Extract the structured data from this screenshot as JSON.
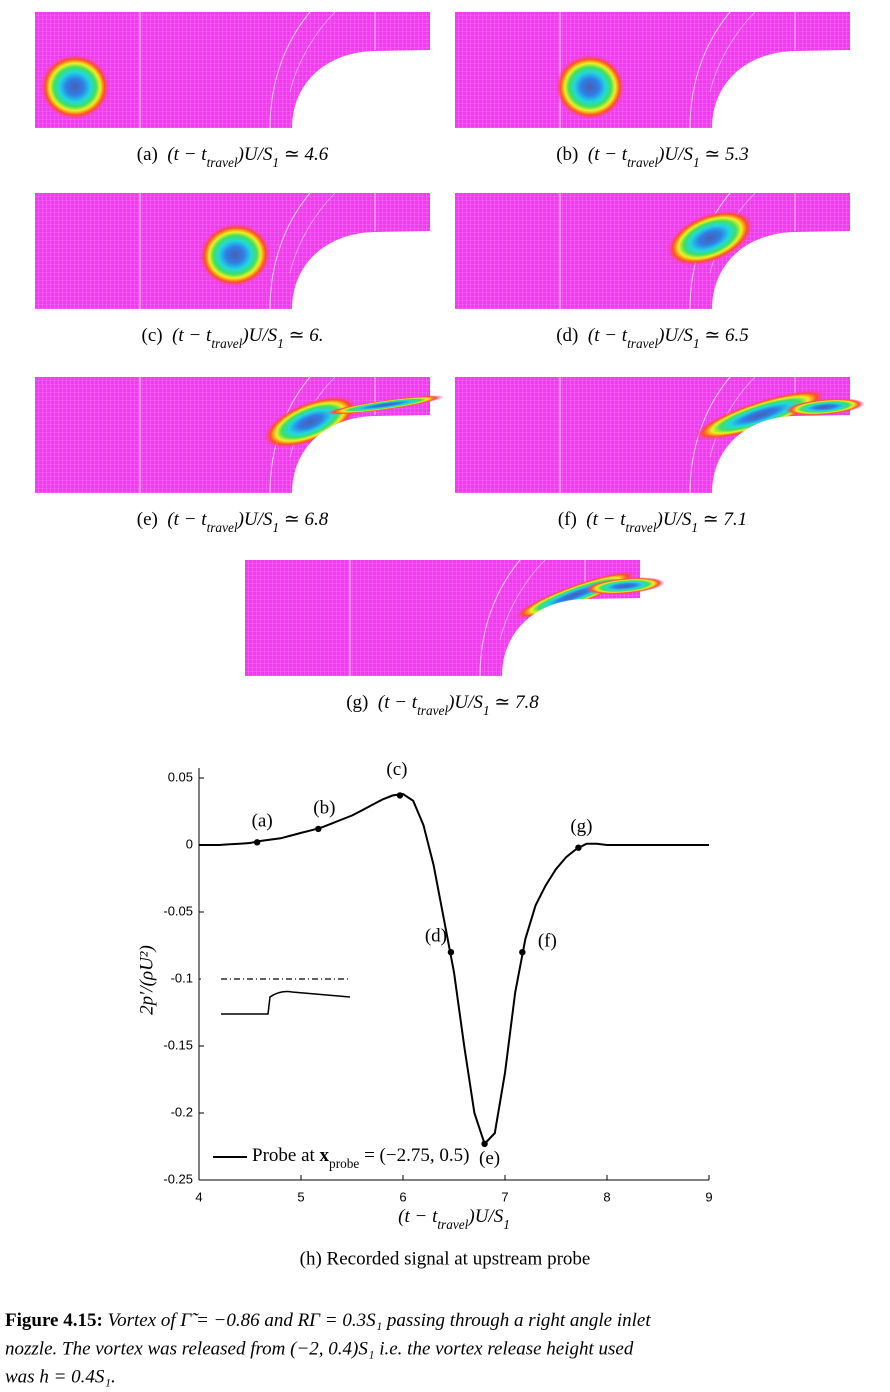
{
  "panels": [
    {
      "label": "(a)",
      "caption": [
        "(t − t",
        "travel",
        ")U/S",
        "1",
        " ≃ 4.6"
      ]
    },
    {
      "label": "(b)",
      "caption": [
        "(t − t",
        "travel",
        ")U/S",
        "1",
        " ≃ 5.3"
      ]
    },
    {
      "label": "(c)",
      "caption": [
        "(t − t",
        "travel",
        ")U/S",
        "1",
        " ≃ 6."
      ]
    },
    {
      "label": "(d)",
      "caption": [
        "(t − t",
        "travel",
        ")U/S",
        "1",
        " ≃ 6.5"
      ]
    },
    {
      "label": "(e)",
      "caption": [
        "(t − t",
        "travel",
        ")U/S",
        "1",
        " ≃ 6.8"
      ]
    },
    {
      "label": "(f)",
      "caption": [
        "(t − t",
        "travel",
        ")U/S",
        "1",
        " ≃ 7.1"
      ]
    },
    {
      "label": "(g)",
      "caption": [
        "(t − t",
        "travel",
        ")U/S",
        "1",
        " ≃ 7.8"
      ]
    }
  ],
  "chart_data": {
    "type": "line",
    "caption": "(h) Recorded signal at upstream probe",
    "xlabel": [
      "(t − t",
      "travel",
      ")U/S",
      "1"
    ],
    "ylabel": "2p′/(ρU²)",
    "xlim": [
      4,
      9
    ],
    "ylim": [
      -0.25,
      0.05
    ],
    "xticks": [
      4,
      5,
      6,
      7,
      8,
      9
    ],
    "yticks": [
      0.05,
      0,
      -0.05,
      -0.1,
      -0.15,
      -0.2,
      -0.25
    ],
    "x": [
      4.0,
      4.1,
      4.2,
      4.3,
      4.4,
      4.5,
      4.6,
      4.7,
      4.8,
      4.9,
      5.0,
      5.1,
      5.2,
      5.3,
      5.4,
      5.5,
      5.6,
      5.7,
      5.8,
      5.9,
      6.0,
      6.1,
      6.2,
      6.3,
      6.4,
      6.5,
      6.6,
      6.7,
      6.8,
      6.9,
      7.0,
      7.1,
      7.2,
      7.3,
      7.4,
      7.5,
      7.6,
      7.7,
      7.8,
      7.9,
      8.0,
      8.1,
      8.2,
      8.3,
      8.4,
      8.5,
      8.6,
      8.7,
      8.8,
      8.9,
      9.0
    ],
    "series": [
      {
        "name": [
          "Probe at ",
          "x",
          "probe",
          " = (−2.75, 0.5)"
        ],
        "color": "#000000",
        "values": [
          0,
          0,
          0,
          0.0005,
          0.001,
          0.0015,
          0.003,
          0.004,
          0.005,
          0.007,
          0.009,
          0.011,
          0.013,
          0.016,
          0.019,
          0.022,
          0.026,
          0.03,
          0.034,
          0.037,
          0.038,
          0.033,
          0.015,
          -0.015,
          -0.055,
          -0.095,
          -0.15,
          -0.2,
          -0.223,
          -0.215,
          -0.17,
          -0.11,
          -0.07,
          -0.045,
          -0.03,
          -0.018,
          -0.009,
          -0.003,
          0.001,
          0.001,
          0,
          0,
          0,
          0,
          0,
          0,
          0,
          0,
          0,
          0,
          0
        ]
      }
    ],
    "points": {
      "x": [
        4.57,
        5.17,
        5.97,
        6.47,
        6.8,
        7.17,
        7.72
      ],
      "y": [
        0.002,
        0.012,
        0.037,
        -0.08,
        -0.223,
        -0.08,
        -0.002
      ],
      "labels": [
        "(a)",
        "(b)",
        "(c)",
        "(d)",
        "(e)",
        "(f)",
        "(g)"
      ]
    }
  },
  "figure_caption": {
    "number": "Figure 4.15:",
    "lines": [
      "Vortex of Γ̃ = −0.86 and RΓ = 0.3S₁ passing through a right angle inlet",
      "nozzle.  The vortex was released from (−2, 0.4)S₁ i.e.  the vortex release height used",
      "was h = 0.4S₁."
    ]
  }
}
